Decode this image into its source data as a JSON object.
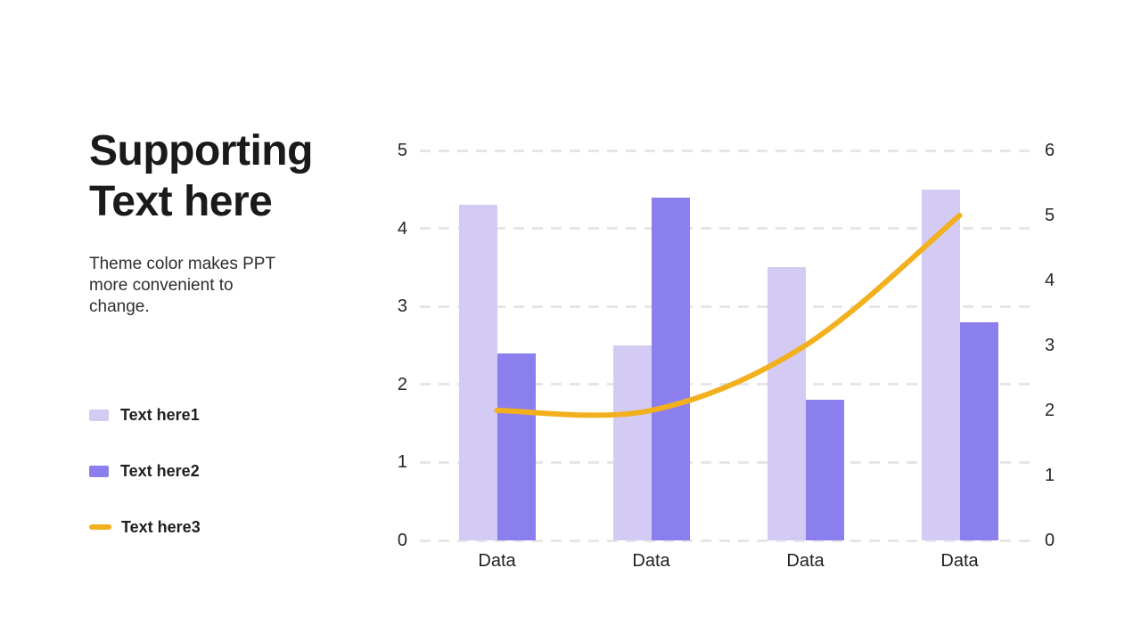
{
  "slide": {
    "title_lines": [
      "Supporting",
      "Text here"
    ],
    "subtitle_lines": [
      "Theme color makes PPT",
      "more convenient to",
      "change."
    ]
  },
  "legend": {
    "items": [
      {
        "label": "Text here1",
        "color": "#d4cbf4",
        "marker": "square"
      },
      {
        "label": "Text here2",
        "color": "#8b7fed",
        "marker": "square"
      },
      {
        "label": "Text here3",
        "color": "#f2b01e",
        "marker": "line"
      }
    ]
  },
  "chart_data": {
    "type": "combo-bar-line",
    "categories": [
      "Data",
      "Data",
      "Data",
      "Data"
    ],
    "series": [
      {
        "name": "Text here1",
        "type": "bar",
        "axis": "left",
        "color": "#d4cbf4",
        "values": [
          4.3,
          2.5,
          3.5,
          4.5
        ]
      },
      {
        "name": "Text here2",
        "type": "bar",
        "axis": "left",
        "color": "#8b7fed",
        "values": [
          2.4,
          4.4,
          1.8,
          2.8
        ]
      },
      {
        "name": "Text here3",
        "type": "line",
        "axis": "right",
        "color": "#f2b01e",
        "values": [
          2,
          2,
          3,
          5
        ]
      }
    ],
    "left_axis": {
      "min": 0,
      "max": 5,
      "ticks": [
        0,
        1,
        2,
        3,
        4,
        5
      ]
    },
    "right_axis": {
      "min": 0,
      "max": 6,
      "ticks": [
        0,
        1,
        2,
        3,
        4,
        5,
        6
      ]
    },
    "grid": "dashed-horizontal",
    "legend_position": "left-panel",
    "colors": {
      "bar_light": "#d4cbf4",
      "bar_dark": "#8b7fed",
      "line": "#f2b01e",
      "grid": "#e6e6e6",
      "text": "#262626"
    }
  }
}
